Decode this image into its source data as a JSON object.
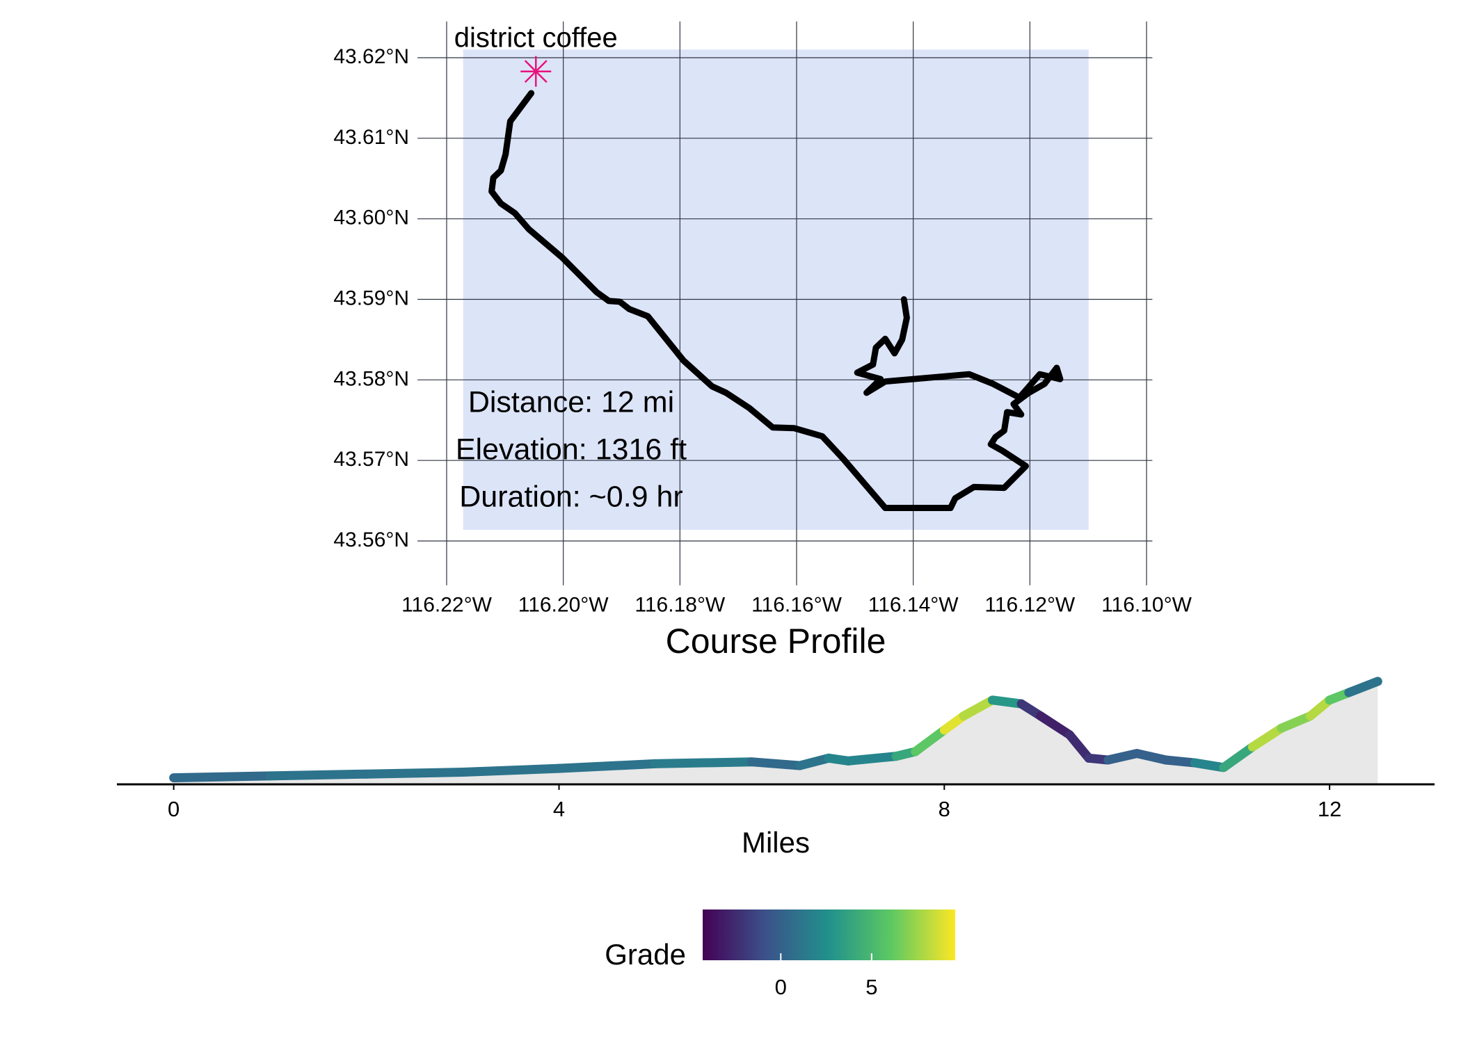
{
  "chart_data": [
    {
      "type": "route",
      "x": [
        -116.2055,
        -116.2091,
        -116.2099,
        -116.2107,
        -116.212,
        -116.2123,
        -116.2107,
        -116.2083,
        -116.2059,
        -116.2002,
        -116.1943,
        -116.1922,
        -116.1903,
        -116.1887,
        -116.1855,
        -116.1794,
        -116.1745,
        -116.1721,
        -116.1681,
        -116.1641,
        -116.1604,
        -116.1556,
        -116.152,
        -116.1448,
        -116.1336,
        -116.1328,
        -116.1296,
        -116.1244,
        -116.1207,
        -116.1247,
        -116.1267,
        -116.1259,
        -116.1244,
        -116.1239,
        -116.1215,
        -116.1228,
        -116.1202,
        -116.1175,
        -116.1154,
        -116.1148,
        -116.1183,
        -116.1218,
        -116.1263,
        -116.1304,
        -116.1448,
        -116.148,
        -116.1456,
        -116.1496,
        -116.1469,
        -116.1464,
        -116.1448,
        -116.1432,
        -116.1419,
        -116.1411,
        -116.1416
      ],
      "values": [
        43.6156,
        43.6121,
        43.608,
        43.606,
        43.6051,
        43.6034,
        43.6019,
        43.6007,
        43.5987,
        43.5952,
        43.5909,
        43.5898,
        43.5897,
        43.5888,
        43.5879,
        43.5824,
        43.5792,
        43.5784,
        43.5765,
        43.5741,
        43.574,
        43.573,
        43.5702,
        43.5641,
        43.5641,
        43.5653,
        43.5667,
        43.5666,
        43.5693,
        43.5712,
        43.572,
        43.5729,
        43.5737,
        43.576,
        43.5757,
        43.577,
        43.5784,
        43.5795,
        43.5815,
        43.5801,
        43.5807,
        43.5778,
        43.5795,
        43.5807,
        43.5798,
        43.5784,
        43.5801,
        43.5809,
        43.5819,
        43.584,
        43.5851,
        43.5833,
        43.585,
        43.5877,
        43.59
      ],
      "color": "#000000",
      "background": "#dce4f8",
      "marker": {
        "label": "district coffee",
        "x": -116.2047,
        "y": 43.6183,
        "color": "#e8127c"
      },
      "annotations": [
        "Distance: 12 mi",
        "Elevation: 1316 ft",
        "Duration: ~0.9 hr"
      ],
      "xlim": [
        -116.225,
        -116.099
      ],
      "ylim": [
        43.5545,
        43.6245
      ],
      "xticks": [
        {
          "value": -116.22,
          "label": "116.22°W"
        },
        {
          "value": -116.2,
          "label": "116.20°W"
        },
        {
          "value": -116.18,
          "label": "116.18°W"
        },
        {
          "value": -116.16,
          "label": "116.16°W"
        },
        {
          "value": -116.14,
          "label": "116.14°W"
        },
        {
          "value": -116.12,
          "label": "116.12°W"
        },
        {
          "value": -116.1,
          "label": "116.10°W"
        }
      ],
      "yticks": [
        {
          "value": 43.56,
          "label": "43.56°N"
        },
        {
          "value": 43.57,
          "label": "43.57°N"
        },
        {
          "value": 43.58,
          "label": "43.58°N"
        },
        {
          "value": 43.59,
          "label": "43.59°N"
        },
        {
          "value": 43.6,
          "label": "43.60°N"
        },
        {
          "value": 43.61,
          "label": "43.61°N"
        },
        {
          "value": 43.62,
          "label": "43.62°N"
        }
      ],
      "grid": true
    },
    {
      "type": "profile",
      "title": "Course Profile",
      "xlabel": "Miles",
      "x": [
        0,
        1,
        2,
        3,
        4,
        5,
        6,
        6.5,
        6.8,
        7,
        7.5,
        7.7,
        8,
        8.2,
        8.5,
        8.8,
        9,
        9.3,
        9.5,
        9.7,
        10,
        10.3,
        10.6,
        10.9,
        11.2,
        11.5,
        11.8,
        12,
        12.2,
        12.5
      ],
      "values": [
        2721,
        2727,
        2733,
        2739,
        2751,
        2766,
        2772,
        2760,
        2784,
        2775,
        2790,
        2805,
        2874,
        2919,
        2970,
        2958,
        2919,
        2859,
        2784,
        2778,
        2799,
        2778,
        2769,
        2754,
        2820,
        2880,
        2919,
        2970,
        2994,
        3030
      ],
      "grade": [
        0.5,
        1,
        1,
        1,
        1,
        1.5,
        0.5,
        1,
        2,
        2,
        4,
        6,
        9,
        8,
        3,
        -2,
        -3,
        -2.5,
        -2,
        0,
        0,
        0,
        2,
        4,
        8,
        7,
        8,
        6,
        1,
        0
      ],
      "fill": "#e8e8e8",
      "xlim": [
        -0.59,
        13.09
      ],
      "ylim": [
        2700,
        3070
      ],
      "xticks": [
        0,
        4,
        8,
        12
      ],
      "legend": {
        "title": "Grade",
        "colormap": "viridis",
        "lim": [
          -4.3,
          9.6
        ],
        "ticks": [
          0,
          5
        ],
        "position": "bottom"
      }
    }
  ]
}
